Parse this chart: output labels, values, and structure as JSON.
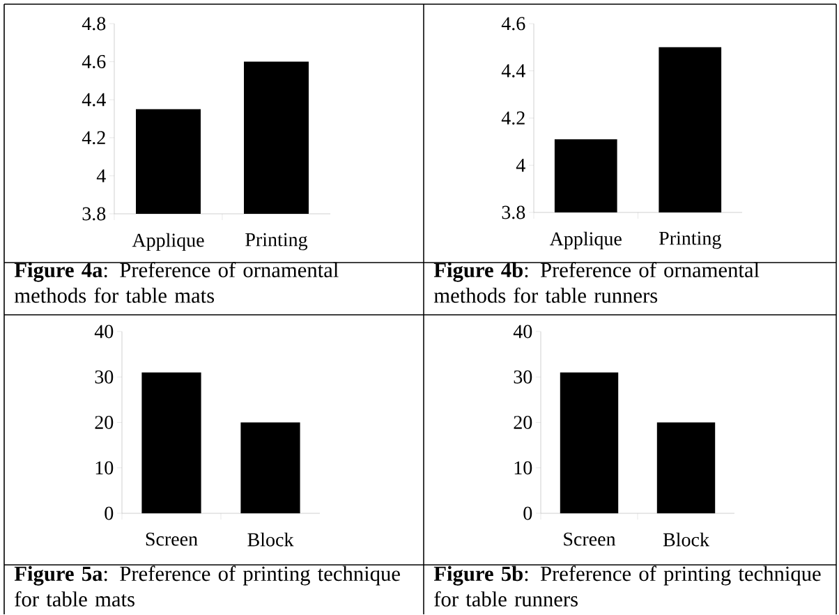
{
  "chart_data": [
    {
      "type": "bar",
      "title": "**Figure 4a**: Preference of ornamental methods for table mats",
      "categories": [
        "Applique",
        "Printing"
      ],
      "values": [
        4.35,
        4.6
      ],
      "color": "#000000",
      "ylim": [
        3.8,
        4.8
      ],
      "yticks": [
        3.8,
        4,
        4.2,
        4.4,
        4.6,
        4.8
      ]
    },
    {
      "type": "bar",
      "title": "**Figure 4b**: Preference of ornamental methods for table runners",
      "categories": [
        "Applique",
        "Printing"
      ],
      "values": [
        4.11,
        4.5
      ],
      "color": "#000000",
      "ylim": [
        3.8,
        4.6
      ],
      "yticks": [
        3.8,
        4,
        4.2,
        4.4,
        4.6
      ]
    },
    {
      "type": "bar",
      "title": "**Figure 5a**: Preference of printing technique for table mats",
      "categories": [
        "Screen",
        "Block"
      ],
      "values": [
        31,
        20
      ],
      "color": "#000000",
      "ylim": [
        0,
        40
      ],
      "yticks": [
        0,
        10,
        20,
        30,
        40
      ]
    },
    {
      "type": "bar",
      "title": "**Figure 5b**: Preference of printing technique for table runners",
      "categories": [
        "Screen",
        "Block"
      ],
      "values": [
        31,
        20
      ],
      "color": "#000000",
      "ylim": [
        0,
        40
      ],
      "yticks": [
        0,
        10,
        20,
        30,
        40
      ]
    }
  ]
}
